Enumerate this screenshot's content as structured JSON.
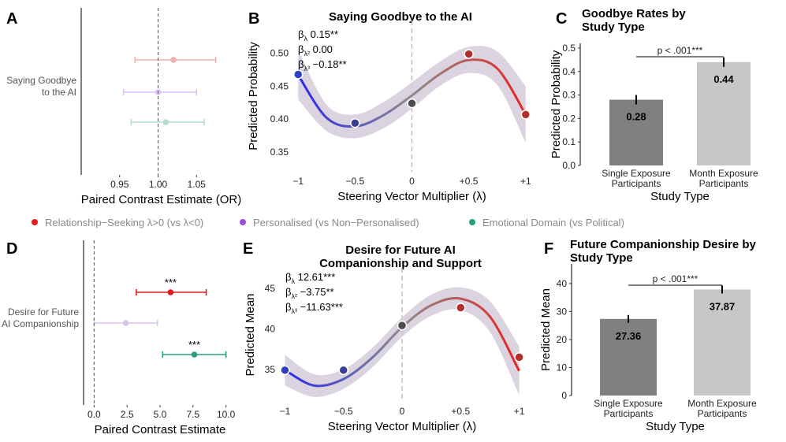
{
  "legend": {
    "items": [
      {
        "label": "Relationship−Seeking λ>0 (vs λ<0)",
        "color": "#e41a1c"
      },
      {
        "label": "Personalised (vs Non−Personalised)",
        "color": "#984ee3"
      },
      {
        "label": "Emotional Domain (vs Political)",
        "color": "#2a9d7f"
      }
    ]
  },
  "chart_data": [
    {
      "panel": "A",
      "type": "scatter",
      "row_label": [
        "Saying Goodbye",
        "to the AI"
      ],
      "xlabel": "Paired Contrast Estimate (OR)",
      "xlim": [
        0.9,
        1.1
      ],
      "xticks": [
        0.95,
        1.0,
        1.05
      ],
      "xtick_labels": [
        "0.95",
        "1.00",
        "1.05"
      ],
      "reference_line": 1.0,
      "series": [
        {
          "name": "Relationship−Seeking λ>0 (vs λ<0)",
          "estimate": 1.02,
          "ci": [
            0.97,
            1.075
          ],
          "stars": "",
          "faded": true
        },
        {
          "name": "Personalised (vs Non−Personalised)",
          "estimate": 1.0,
          "ci": [
            0.955,
            1.05
          ],
          "stars": "",
          "faded": true
        },
        {
          "name": "Emotional Domain (vs Political)",
          "estimate": 1.01,
          "ci": [
            0.965,
            1.06
          ],
          "stars": "",
          "faded": true
        }
      ]
    },
    {
      "panel": "B",
      "type": "line",
      "title": "Saying Goodbye to the AI",
      "xlabel": "Steering Vector Multiplier (λ)",
      "ylabel": "Predicted Probability",
      "xlim": [
        -1.05,
        1.05
      ],
      "ylim": [
        0.32,
        0.55
      ],
      "xticks": [
        -1,
        -0.5,
        0,
        0.5,
        1
      ],
      "xtick_labels": [
        "−1",
        "−0.5",
        "0",
        "+0.5",
        "+1"
      ],
      "yticks": [
        0.35,
        0.4,
        0.45,
        0.5
      ],
      "ytick_labels": [
        "0.35",
        "0.40",
        "0.45",
        "0.50"
      ],
      "coefficients": [
        "βλ 0.15**",
        "βλ² 0.00",
        "βλ³ −0.18**"
      ],
      "points": {
        "x": [
          -1,
          -0.5,
          0,
          0.5,
          1
        ],
        "y": [
          0.468,
          0.394,
          0.424,
          0.499,
          0.407
        ]
      },
      "curve": {
        "x": [
          -1.0,
          -0.75,
          -0.5,
          -0.25,
          0.0,
          0.25,
          0.5,
          0.75,
          1.0
        ],
        "y": [
          0.467,
          0.402,
          0.389,
          0.406,
          0.436,
          0.469,
          0.49,
          0.477,
          0.407
        ]
      },
      "band_lower": [
        0.43,
        0.382,
        0.371,
        0.386,
        0.416,
        0.451,
        0.47,
        0.452,
        0.364
      ],
      "band_upper": [
        0.505,
        0.422,
        0.407,
        0.426,
        0.456,
        0.488,
        0.51,
        0.503,
        0.45
      ]
    },
    {
      "panel": "C",
      "type": "bar",
      "title": "Goodbye Rates by Study Type",
      "xlabel": "Study Type",
      "ylabel": "Predicted Probability",
      "categories": [
        "Single Exposure Participants",
        "Month Exposure Participants"
      ],
      "values": [
        0.28,
        0.44
      ],
      "value_labels": [
        "0.28",
        "0.44"
      ],
      "errors": [
        0.02,
        0.02
      ],
      "bar_colors": [
        "#808080",
        "#c7c7c7"
      ],
      "ylim": [
        0,
        0.52
      ],
      "yticks": [
        0.0,
        0.1,
        0.2,
        0.3,
        0.4,
        0.5
      ],
      "ytick_labels": [
        "0.0",
        "0.1",
        "0.2",
        "0.3",
        "0.4",
        "0.5"
      ],
      "annotation": "p < .001***"
    },
    {
      "panel": "D",
      "type": "scatter",
      "row_label": [
        "Desire for Future",
        "AI Companionship"
      ],
      "xlabel": "Paired Contrast Estimate",
      "xlim": [
        -0.8,
        10.8
      ],
      "xticks": [
        0.0,
        2.5,
        5.0,
        7.5,
        10.0
      ],
      "xtick_labels": [
        "0.0",
        "2.5",
        "5.0",
        "7.5",
        "10.0"
      ],
      "reference_line": 0.0,
      "series": [
        {
          "name": "Relationship−Seeking λ>0 (vs λ<0)",
          "estimate": 5.8,
          "ci": [
            3.2,
            8.5
          ],
          "stars": "***",
          "faded": false
        },
        {
          "name": "Personalised (vs Non−Personalised)",
          "estimate": 2.4,
          "ci": [
            0.0,
            4.8
          ],
          "stars": "",
          "faded": true
        },
        {
          "name": "Emotional Domain (vs Political)",
          "estimate": 7.6,
          "ci": [
            5.2,
            10.0
          ],
          "stars": "***",
          "faded": false
        }
      ]
    },
    {
      "panel": "E",
      "type": "line",
      "title": "Desire for Future AI Companionship and Support",
      "title_lines": [
        "Desire for Future AI",
        "Companionship and Support"
      ],
      "xlabel": "Steering Vector Multiplier (λ)",
      "ylabel": "Predicted Mean",
      "xlim": [
        -1.05,
        1.05
      ],
      "ylim": [
        31,
        47.5
      ],
      "xticks": [
        -1,
        -0.5,
        0,
        0.5,
        1
      ],
      "xtick_labels": [
        "−1",
        "−0.5",
        "0",
        "+0.5",
        "+1"
      ],
      "yticks": [
        35,
        40,
        45
      ],
      "ytick_labels": [
        "35",
        "40",
        "45"
      ],
      "coefficients": [
        "βλ 12.61***",
        "βλ² −3.75**",
        "βλ³ −11.63***"
      ],
      "points": {
        "x": [
          -1,
          -0.5,
          0,
          0.5,
          1
        ],
        "y": [
          34.9,
          34.9,
          40.4,
          42.6,
          36.5
        ]
      },
      "curve": {
        "x": [
          -1.0,
          -0.75,
          -0.5,
          -0.25,
          0.0,
          0.25,
          0.5,
          0.75,
          1.0
        ],
        "y": [
          34.9,
          33.0,
          33.8,
          36.5,
          40.2,
          42.9,
          43.7,
          41.5,
          34.8
        ]
      },
      "band_lower": [
        33.0,
        31.6,
        32.6,
        35.3,
        39.0,
        41.6,
        42.3,
        39.6,
        31.8
      ],
      "band_upper": [
        36.8,
        34.4,
        35.0,
        37.7,
        41.4,
        44.2,
        45.1,
        43.4,
        37.8
      ]
    },
    {
      "panel": "F",
      "type": "bar",
      "title": "Future Companionship Desire by Study Type",
      "title_lines": [
        "Future Companionship Desire by",
        "Study Type"
      ],
      "xlabel": "Study Type",
      "ylabel": "Predicted Mean",
      "categories": [
        "Single Exposure Participants",
        "Month Exposure Participants"
      ],
      "values": [
        27.36,
        37.87
      ],
      "value_labels": [
        "27.36",
        "37.87"
      ],
      "errors": [
        1.4,
        1.4
      ],
      "bar_colors": [
        "#808080",
        "#c7c7c7"
      ],
      "ylim": [
        0,
        47
      ],
      "yticks": [
        0,
        10,
        20,
        30,
        40
      ],
      "ytick_labels": [
        "0",
        "10",
        "20",
        "30",
        "40"
      ],
      "annotation": "p < .001***"
    }
  ]
}
